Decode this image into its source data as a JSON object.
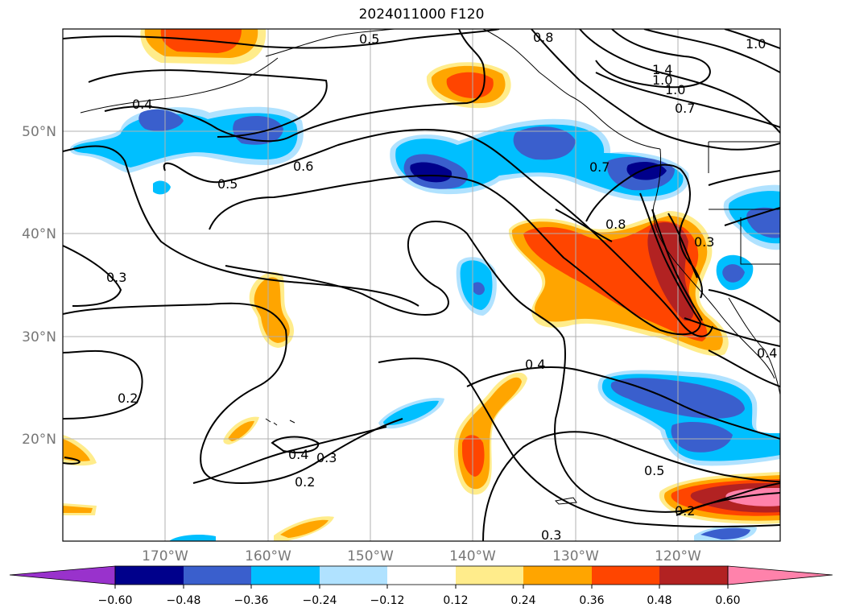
{
  "title": "2024011000 F120",
  "map": {
    "lat_labels": [
      "50°N",
      "40°N",
      "30°N",
      "20°N"
    ],
    "lon_labels": [
      "170°W",
      "160°W",
      "150°W",
      "140°W",
      "130°W",
      "120°W"
    ],
    "contour_labels": [
      "0.5",
      "0.8",
      "1.4",
      "1.0",
      "1.0",
      "0.7",
      "0.4",
      "0.6",
      "0.5",
      "0.7",
      "0.8",
      "0.3",
      "0.3",
      "0.4",
      "0.2",
      "0.4",
      "0.3",
      "0.2",
      "0.5",
      "0.2",
      "0.3",
      "0.4",
      "1.0"
    ]
  },
  "colorbar": {
    "ticks": [
      "−0.60",
      "−0.48",
      "−0.36",
      "−0.24",
      "−0.12",
      "0.12",
      "0.24",
      "0.36",
      "0.48",
      "0.60"
    ],
    "colors": {
      "under": "#9932cc",
      "bins": [
        "#00008b",
        "#3a5fcd",
        "#00bfff",
        "#b0e2ff",
        "#ffffff",
        "#ffec8b",
        "#ffa500",
        "#ff4500",
        "#b22222",
        "#ff82ab"
      ]
    }
  },
  "colors": {
    "neg_strong": "#00008b",
    "neg_mid": "#3a5fcd",
    "neg_light": "#00bfff",
    "neg_faint": "#b0e2ff",
    "pos_faint": "#ffec8b",
    "pos_light": "#ffa500",
    "pos_mid": "#ff4500",
    "pos_strong": "#b22222",
    "pos_max": "#ff82ab"
  }
}
